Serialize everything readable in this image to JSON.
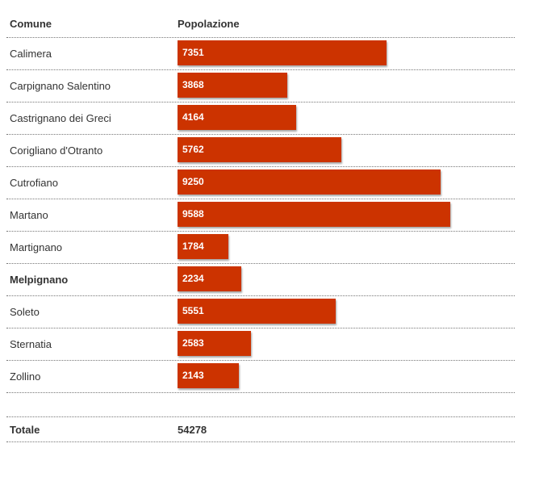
{
  "header": {
    "comune": "Comune",
    "popolazione": "Popolazione"
  },
  "chart_data": {
    "type": "bar",
    "orientation": "horizontal",
    "categories": [
      "Calimera",
      "Carpignano Salentino",
      "Castrignano dei Greci",
      "Corigliano d'Otranto",
      "Cutrofiano",
      "Martano",
      "Martignano",
      "Melpignano",
      "Soleto",
      "Sternatia",
      "Zollino"
    ],
    "values": [
      7351,
      3868,
      4164,
      5762,
      9250,
      9588,
      1784,
      2234,
      5551,
      2583,
      2143
    ],
    "highlighted": "Melpignano",
    "bar_color": "#cc3300",
    "xlim": [
      0,
      9588
    ]
  },
  "totale": {
    "label": "Totale",
    "value": "54278"
  }
}
